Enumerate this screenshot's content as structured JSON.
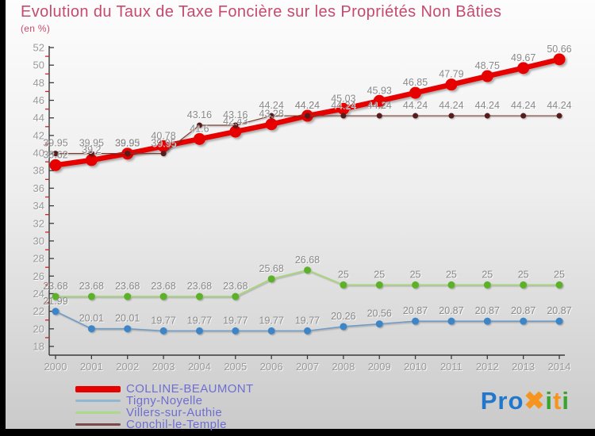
{
  "header": {
    "title": "Evolution du Taux de Taxe Foncière sur les Propriétés Non Bâties",
    "subtitle": "(en %)"
  },
  "chart_data": {
    "type": "line",
    "title": "Evolution du Taux de Taxe Foncière sur les Propriétés Non Bâties",
    "subtitle": "(en %)",
    "x": [
      2000,
      2001,
      2002,
      2003,
      2004,
      2005,
      2006,
      2007,
      2008,
      2009,
      2010,
      2011,
      2012,
      2013,
      2014
    ],
    "ylim": [
      18,
      52
    ],
    "ytick_step": 2,
    "grid": false,
    "legend_position": "bottom-left",
    "series": [
      {
        "name": "COLLINE-BEAUMONT",
        "color": "#e60000",
        "legend_color": "#e60000",
        "line_width": 6.5,
        "marker_radius": 7.5,
        "legend_thickness": 8,
        "values": [
          38.62,
          39.2,
          39.93,
          40.78,
          41.6,
          42.43,
          43.28,
          44.24,
          45.03,
          45.93,
          46.85,
          47.79,
          48.75,
          49.67,
          50.66
        ]
      },
      {
        "name": "Tigny-Noyelle",
        "color": "#6e9cc4",
        "marker_color": "#3d85c6",
        "legend_color": "#8fb8d0",
        "line_width": 1.6,
        "marker_radius": 4.5,
        "legend_thickness": 3,
        "values": [
          21.99,
          20.01,
          20.01,
          19.77,
          19.77,
          19.77,
          19.77,
          19.77,
          20.26,
          20.56,
          20.87,
          20.87,
          20.87,
          20.87,
          20.87
        ]
      },
      {
        "name": "Villers-sur-Authie",
        "color": "#a6d47a",
        "marker_color": "#5cb02c",
        "legend_color": "#abd98a",
        "line_width": 1.8,
        "marker_radius": 4.5,
        "legend_thickness": 3,
        "values": [
          23.68,
          23.68,
          23.68,
          23.68,
          23.68,
          23.68,
          25.68,
          26.68,
          25,
          25,
          25,
          25,
          25,
          25,
          25
        ]
      },
      {
        "name": "Conchil-le-Temple",
        "color": "#7c3b33",
        "marker_color": "#571f1f",
        "legend_color": "#7d4a4a",
        "line_width": 1.2,
        "marker_radius": 3.5,
        "legend_thickness": 3,
        "values": [
          39.95,
          39.95,
          39.95,
          39.95,
          43.16,
          43.16,
          44.24,
          44.24,
          44.24,
          44.24,
          44.24,
          44.24,
          44.24,
          44.24,
          44.24
        ]
      }
    ]
  },
  "colors": {
    "title": "#c64a6e",
    "legend_text": "#6e6ed2",
    "value_label": "#8a8a8a",
    "axis_text": "#9a9a9a",
    "axis_line": "#3a3a3a",
    "minor_tick": "#cc2222"
  },
  "logo": {
    "letters": [
      {
        "ch": "Pro",
        "color": "#2277cc"
      },
      {
        "ch": "✖",
        "color": "#f5941f"
      },
      {
        "ch": "i",
        "color": "#38a32f"
      },
      {
        "ch": "t",
        "color": "#f5941f"
      },
      {
        "ch": "i",
        "color": "#38a32f"
      }
    ]
  }
}
